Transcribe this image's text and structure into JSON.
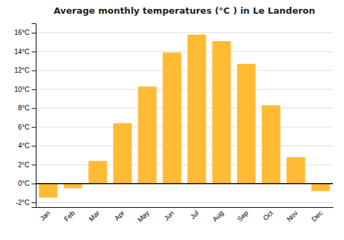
{
  "chart_data": {
    "type": "bar",
    "title": "Average monthly temperatures (°C ) in Le Landeron",
    "categories": [
      "Jan",
      "Feb",
      "Mar",
      "Apr",
      "May",
      "Jun",
      "Jul",
      "Aug",
      "Sep",
      "Oct",
      "Nov",
      "Dec"
    ],
    "values": [
      -1.5,
      -0.5,
      2.4,
      6.4,
      10.3,
      13.9,
      15.8,
      15.1,
      12.7,
      8.3,
      2.8,
      -0.8
    ],
    "color": "#FFBB33",
    "ylim": [
      -2.5,
      17.0
    ],
    "yticks": [
      {
        "value": -2,
        "label": "-2°C"
      },
      {
        "value": 0,
        "label": "0°C"
      },
      {
        "value": 2,
        "label": "2°C"
      },
      {
        "value": 4,
        "label": "4°C"
      },
      {
        "value": 6,
        "label": "6°C"
      },
      {
        "value": 8,
        "label": "8°C"
      },
      {
        "value": 10,
        "label": "10°C"
      },
      {
        "value": 12,
        "label": "12°C"
      },
      {
        "value": 14,
        "label": "14°C"
      },
      {
        "value": 16,
        "label": "16°C"
      }
    ],
    "grid": true
  }
}
